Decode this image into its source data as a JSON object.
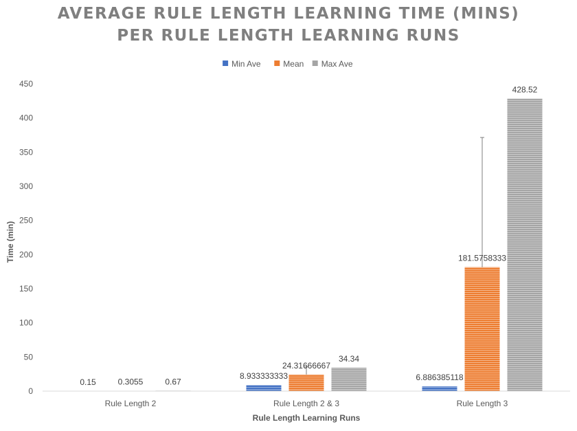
{
  "chart_data": {
    "type": "bar",
    "title_line1": "AVERAGE RULE LENGTH LEARNING TIME (MINS)",
    "title_line2": "PER RULE LENGTH LEARNING RUNS",
    "xlabel": "Rule Length Learning Runs",
    "ylabel": "Time (min)",
    "categories": [
      "Rule Length 2",
      "Rule Length 2 & 3",
      "Rule Length 3"
    ],
    "ylim": [
      0,
      450
    ],
    "yticks": [
      "0",
      "50",
      "100",
      "150",
      "200",
      "250",
      "300",
      "350",
      "400",
      "450"
    ],
    "grid": false,
    "legend_position": "top",
    "series": [
      {
        "name": "Min Ave",
        "color": "#4472c4",
        "values": [
          0.15,
          8.933333333,
          6.886385118
        ],
        "labels": [
          "0.15",
          "8.933333333",
          "6.886385118"
        ]
      },
      {
        "name": "Mean",
        "color": "#ed7d31",
        "values": [
          0.3055,
          24.31666667,
          181.5758333
        ],
        "labels": [
          "0.3055",
          "24.31666667",
          "181.5758333"
        ],
        "error_bar_upper": [
          null,
          35.5,
          371.5
        ]
      },
      {
        "name": "Max Ave",
        "color": "#a5a5a5",
        "values": [
          0.67,
          34.34,
          428.52
        ],
        "labels": [
          "0.67",
          "34.34",
          "428.52"
        ]
      }
    ]
  }
}
